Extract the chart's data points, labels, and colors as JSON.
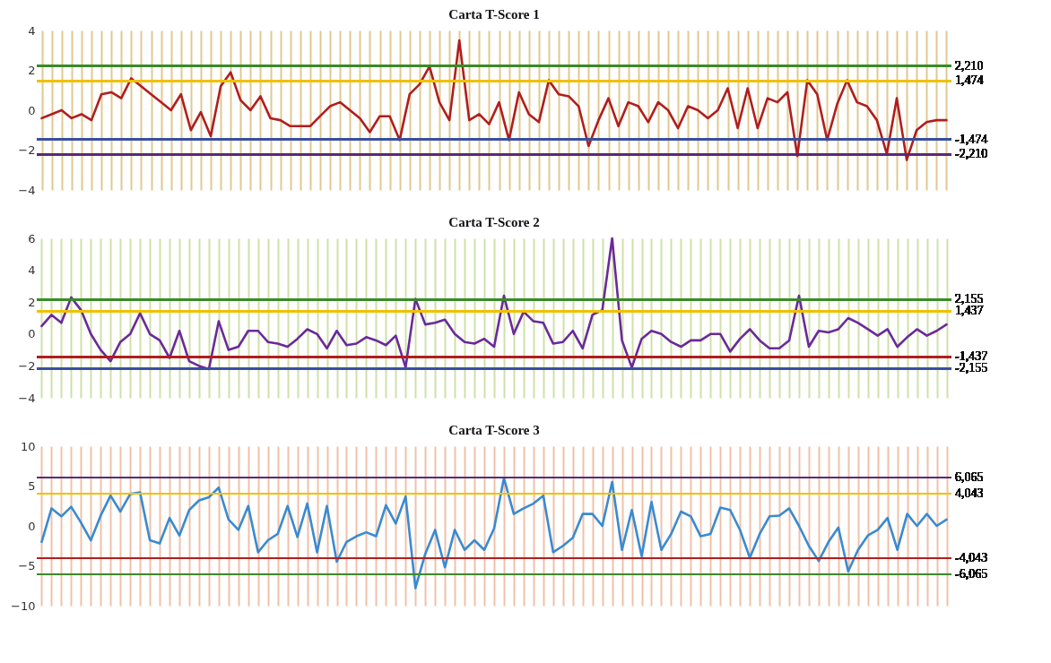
{
  "chart_data": [
    {
      "type": "line",
      "title": "Carta T-Score 1",
      "tick_labels": "y",
      "grid": "x",
      "ylim": [
        -4,
        4
      ],
      "yticks": [
        -4,
        -2,
        0,
        2,
        4
      ],
      "categories": [
        null,
        null,
        null,
        null,
        null,
        null,
        null,
        null,
        null,
        null,
        null,
        null,
        null,
        null,
        null,
        null,
        null,
        null,
        null,
        null,
        null,
        null,
        null,
        null,
        null,
        null,
        null,
        null,
        null,
        null,
        null,
        null,
        null,
        null,
        null,
        null,
        null,
        null,
        null,
        null,
        null,
        null,
        null,
        null,
        null,
        null,
        null,
        null,
        null,
        null,
        null,
        null,
        null,
        null,
        null,
        null,
        null,
        null,
        null,
        null,
        null,
        null,
        null,
        null,
        null,
        null,
        null,
        null,
        null,
        null,
        null,
        null,
        null,
        null,
        null,
        null,
        null,
        null,
        null,
        null,
        null,
        null,
        null,
        null,
        null,
        null,
        null,
        null,
        null,
        null,
        null,
        null
      ],
      "series": [
        {
          "color": "#b01e1e",
          "values": [
            -0.4,
            -0.2,
            0,
            -0.4,
            -0.2,
            -0.5,
            0.8,
            0.9,
            0.6,
            1.6,
            1.2,
            0.8,
            0.4,
            0,
            0.8,
            -1,
            -0.1,
            -1.3,
            1.2,
            1.9,
            0.5,
            0,
            0.7,
            -0.4,
            -0.5,
            -0.8,
            -0.8,
            -0.8,
            -0.3,
            0.2,
            0.4,
            0,
            -0.4,
            -1.1,
            -0.3,
            -0.3,
            -1.5,
            0.8,
            1.3,
            2.2,
            0.4,
            -0.5,
            3.5,
            -0.5,
            -0.2,
            -0.7,
            0.4,
            -1.5,
            0.9,
            -0.2,
            -0.6,
            1.5,
            0.8,
            0.7,
            0.2,
            -1.8,
            -0.5,
            0.6,
            -0.8,
            0.4,
            0.2,
            -0.6,
            0.4,
            0,
            -0.9,
            0.2,
            0,
            -0.4,
            0,
            1.1,
            -0.9,
            1.1,
            -0.9,
            0.6,
            0.4,
            0.9,
            -2.3,
            1.5,
            0.8,
            -1.5,
            0.3,
            1.5,
            0.4,
            0.2,
            -0.5,
            -2.2,
            0.6,
            -2.5,
            -1,
            -0.6,
            -0.5,
            -0.5
          ]
        }
      ],
      "ref_lines": [
        {
          "axis": "y",
          "value": 2.21,
          "label": "2,210",
          "color": "#3a8a2a"
        },
        {
          "axis": "y",
          "value": 1.474,
          "label": "1,474",
          "color": "#f0c000"
        },
        {
          "axis": "y",
          "value": -1.474,
          "label": "-1,474",
          "color": "#3a4fa0"
        },
        {
          "axis": "y",
          "value": -2.21,
          "label": "-2,210",
          "color": "#5a2a7a"
        }
      ]
    },
    {
      "type": "line",
      "title": "Carta T-Score 2",
      "tick_labels": "y",
      "grid": "x",
      "ylim": [
        -4,
        6
      ],
      "yticks": [
        -4,
        -2,
        0,
        2,
        4,
        6
      ],
      "categories": [
        null,
        null,
        null,
        null,
        null,
        null,
        null,
        null,
        null,
        null,
        null,
        null,
        null,
        null,
        null,
        null,
        null,
        null,
        null,
        null,
        null,
        null,
        null,
        null,
        null,
        null,
        null,
        null,
        null,
        null,
        null,
        null,
        null,
        null,
        null,
        null,
        null,
        null,
        null,
        null,
        null,
        null,
        null,
        null,
        null,
        null,
        null,
        null,
        null,
        null,
        null,
        null,
        null,
        null,
        null,
        null,
        null,
        null,
        null,
        null,
        null,
        null,
        null,
        null,
        null,
        null,
        null,
        null,
        null,
        null,
        null,
        null,
        null,
        null,
        null,
        null,
        null,
        null,
        null,
        null,
        null,
        null,
        null,
        null,
        null,
        null,
        null,
        null,
        null,
        null,
        null,
        null,
        null
      ],
      "series": [
        {
          "color": "#6a2a9a",
          "values": [
            0.5,
            1.2,
            0.7,
            2.3,
            1.5,
            0,
            -1,
            -1.7,
            -0.5,
            0,
            1.3,
            0,
            -0.4,
            -1.5,
            0.2,
            -1.7,
            -2,
            -2.2,
            0.8,
            -1,
            -0.8,
            0.2,
            0.2,
            -0.5,
            -0.6,
            -0.8,
            -0.3,
            0.3,
            0,
            -0.9,
            0.2,
            -0.7,
            -0.6,
            -0.2,
            -0.4,
            -0.7,
            -0.1,
            -2.1,
            2.2,
            0.6,
            0.7,
            0.9,
            0,
            -0.5,
            -0.6,
            -0.3,
            -0.8,
            2.4,
            0,
            1.4,
            0.8,
            0.7,
            -0.6,
            -0.5,
            0.2,
            -0.9,
            1.2,
            1.5,
            6,
            -0.4,
            -2.1,
            -0.3,
            0.2,
            0,
            -0.5,
            -0.8,
            -0.4,
            -0.4,
            0,
            0,
            -1.1,
            -0.3,
            0.3,
            -0.4,
            -0.9,
            -0.9,
            -0.4,
            2.4,
            -0.8,
            0.2,
            0.1,
            0.3,
            1,
            0.7,
            0.3,
            -0.1,
            0.3,
            -0.8,
            -0.2,
            0.3,
            -0.1,
            0.2,
            0.6
          ]
        }
      ],
      "ref_lines": [
        {
          "axis": "y",
          "value": 2.155,
          "label": "2,155",
          "color": "#3a8a2a"
        },
        {
          "axis": "y",
          "value": 1.437,
          "label": "1,437",
          "color": "#f0c000"
        },
        {
          "axis": "y",
          "value": -1.437,
          "label": "-1,437",
          "color": "#b01e1e"
        },
        {
          "axis": "y",
          "value": -2.155,
          "label": "-2,155",
          "color": "#3a4fa0"
        }
      ]
    },
    {
      "type": "line",
      "title": "Carta T-Score 3",
      "tick_labels": "y",
      "grid": "x",
      "ylim": [
        -10,
        10
      ],
      "yticks": [
        -10,
        -5,
        0,
        5,
        10
      ],
      "categories": [
        null,
        null,
        null,
        null,
        null,
        null,
        null,
        null,
        null,
        null,
        null,
        null,
        null,
        null,
        null,
        null,
        null,
        null,
        null,
        null,
        null,
        null,
        null,
        null,
        null,
        null,
        null,
        null,
        null,
        null,
        null,
        null,
        null,
        null,
        null,
        null,
        null,
        null,
        null,
        null,
        null,
        null,
        null,
        null,
        null,
        null,
        null,
        null,
        null,
        null,
        null,
        null,
        null,
        null,
        null,
        null,
        null,
        null,
        null,
        null,
        null,
        null,
        null,
        null,
        null,
        null,
        null,
        null,
        null,
        null,
        null,
        null,
        null,
        null,
        null,
        null,
        null,
        null,
        null,
        null,
        null,
        null,
        null,
        null,
        null,
        null,
        null,
        null,
        null,
        null,
        null,
        null,
        null
      ],
      "series": [
        {
          "color": "#3a8ad0",
          "values": [
            -2,
            2.2,
            1.2,
            2.4,
            0.4,
            -1.8,
            1.3,
            3.8,
            1.8,
            4,
            4.2,
            -1.8,
            -2.2,
            1,
            -1.2,
            2,
            3.2,
            3.6,
            4.8,
            0.8,
            -0.5,
            2.5,
            -3.3,
            -1.8,
            -1,
            2.5,
            -1.4,
            2.8,
            -3.3,
            2.5,
            -4.5,
            -2,
            -1.3,
            -0.8,
            -1.3,
            2.6,
            0.3,
            3.7,
            -7.8,
            -3.5,
            -0.5,
            -5.2,
            -0.5,
            -3,
            -1.8,
            -3,
            -0.3,
            6,
            1.5,
            2.2,
            2.8,
            3.8,
            -3.3,
            -2.5,
            -1.5,
            1.5,
            1.5,
            0,
            5.5,
            -3,
            2,
            -3.8,
            3,
            -3,
            -1,
            1.8,
            1.2,
            -1.3,
            -1,
            2.3,
            2,
            -0.5,
            -4,
            -1,
            1.2,
            1.3,
            2.2,
            0,
            -2.5,
            -4.4,
            -2,
            -0.2,
            -5.7,
            -3,
            -1.2,
            -0.5,
            1,
            -3,
            1.5,
            0,
            1.5,
            0,
            0.8
          ]
        }
      ],
      "ref_lines": [
        {
          "axis": "y",
          "value": 6.065,
          "label": "6,065",
          "color": "#5a2a7a"
        },
        {
          "axis": "y",
          "value": 4.043,
          "label": "4,043",
          "color": "#f0c000"
        },
        {
          "axis": "y",
          "value": -4.043,
          "label": "-4,043",
          "color": "#b01e1e"
        },
        {
          "axis": "y",
          "value": -6.065,
          "label": "-6,065",
          "color": "#3a8a2a"
        }
      ]
    }
  ]
}
